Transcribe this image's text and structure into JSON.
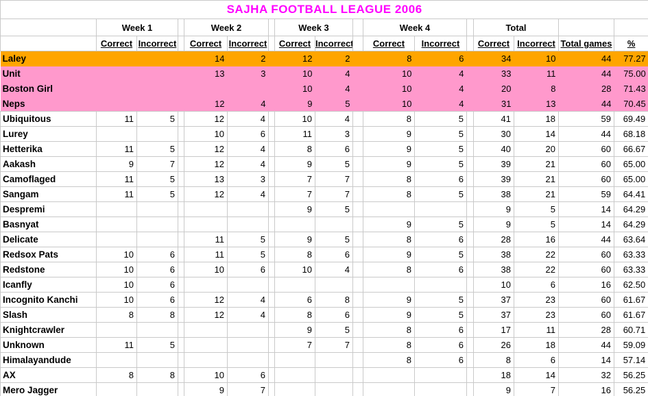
{
  "title": "SAJHA FOOTBALL LEAGUE 2006",
  "colors": {
    "title": "#FF00FF",
    "leader_row": "#FFA500",
    "highlight_row": "#FF99CC",
    "gridline": "#C9C9C9"
  },
  "table": {
    "week_headers": [
      "Week 1",
      "Week 2",
      "Week 3",
      "Week 4",
      "Total"
    ],
    "correct_label": "Correct",
    "incorrect_label": "Incorrect",
    "total_games_header": "Total games",
    "percent_header": "%",
    "rows": [
      {
        "name": "Laley",
        "w1c": "",
        "w1i": "",
        "w2c": "14",
        "w2i": "2",
        "w3c": "12",
        "w3i": "2",
        "w4c": "8",
        "w4i": "6",
        "tc": "34",
        "ti": "10",
        "games": "44",
        "pct": "77.27",
        "hl": "orange"
      },
      {
        "name": "Unit",
        "w1c": "",
        "w1i": "",
        "w2c": "13",
        "w2i": "3",
        "w3c": "10",
        "w3i": "4",
        "w4c": "10",
        "w4i": "4",
        "tc": "33",
        "ti": "11",
        "games": "44",
        "pct": "75.00",
        "hl": "pink"
      },
      {
        "name": "Boston Girl",
        "w1c": "",
        "w1i": "",
        "w2c": "",
        "w2i": "",
        "w3c": "10",
        "w3i": "4",
        "w4c": "10",
        "w4i": "4",
        "tc": "20",
        "ti": "8",
        "games": "28",
        "pct": "71.43",
        "hl": "pink"
      },
      {
        "name": "Neps",
        "w1c": "",
        "w1i": "",
        "w2c": "12",
        "w2i": "4",
        "w3c": "9",
        "w3i": "5",
        "w4c": "10",
        "w4i": "4",
        "tc": "31",
        "ti": "13",
        "games": "44",
        "pct": "70.45",
        "hl": "pink"
      },
      {
        "name": "Ubiquitous",
        "w1c": "11",
        "w1i": "5",
        "w2c": "12",
        "w2i": "4",
        "w3c": "10",
        "w3i": "4",
        "w4c": "8",
        "w4i": "5",
        "tc": "41",
        "ti": "18",
        "games": "59",
        "pct": "69.49",
        "hl": ""
      },
      {
        "name": "Lurey",
        "w1c": "",
        "w1i": "",
        "w2c": "10",
        "w2i": "6",
        "w3c": "11",
        "w3i": "3",
        "w4c": "9",
        "w4i": "5",
        "tc": "30",
        "ti": "14",
        "games": "44",
        "pct": "68.18",
        "hl": ""
      },
      {
        "name": "Hetterika",
        "w1c": "11",
        "w1i": "5",
        "w2c": "12",
        "w2i": "4",
        "w3c": "8",
        "w3i": "6",
        "w4c": "9",
        "w4i": "5",
        "tc": "40",
        "ti": "20",
        "games": "60",
        "pct": "66.67",
        "hl": ""
      },
      {
        "name": "Aakash",
        "w1c": "9",
        "w1i": "7",
        "w2c": "12",
        "w2i": "4",
        "w3c": "9",
        "w3i": "5",
        "w4c": "9",
        "w4i": "5",
        "tc": "39",
        "ti": "21",
        "games": "60",
        "pct": "65.00",
        "hl": ""
      },
      {
        "name": "Camoflaged",
        "w1c": "11",
        "w1i": "5",
        "w2c": "13",
        "w2i": "3",
        "w3c": "7",
        "w3i": "7",
        "w4c": "8",
        "w4i": "6",
        "tc": "39",
        "ti": "21",
        "games": "60",
        "pct": "65.00",
        "hl": ""
      },
      {
        "name": "Sangam",
        "w1c": "11",
        "w1i": "5",
        "w2c": "12",
        "w2i": "4",
        "w3c": "7",
        "w3i": "7",
        "w4c": "8",
        "w4i": "5",
        "tc": "38",
        "ti": "21",
        "games": "59",
        "pct": "64.41",
        "hl": ""
      },
      {
        "name": "Despremi",
        "w1c": "",
        "w1i": "",
        "w2c": "",
        "w2i": "",
        "w3c": "9",
        "w3i": "5",
        "w4c": "",
        "w4i": "",
        "tc": "9",
        "ti": "5",
        "games": "14",
        "pct": "64.29",
        "hl": ""
      },
      {
        "name": "Basnyat",
        "w1c": "",
        "w1i": "",
        "w2c": "",
        "w2i": "",
        "w3c": "",
        "w3i": "",
        "w4c": "9",
        "w4i": "5",
        "tc": "9",
        "ti": "5",
        "games": "14",
        "pct": "64.29",
        "hl": ""
      },
      {
        "name": "Delicate",
        "w1c": "",
        "w1i": "",
        "w2c": "11",
        "w2i": "5",
        "w3c": "9",
        "w3i": "5",
        "w4c": "8",
        "w4i": "6",
        "tc": "28",
        "ti": "16",
        "games": "44",
        "pct": "63.64",
        "hl": ""
      },
      {
        "name": "Redsox Pats",
        "w1c": "10",
        "w1i": "6",
        "w2c": "11",
        "w2i": "5",
        "w3c": "8",
        "w3i": "6",
        "w4c": "9",
        "w4i": "5",
        "tc": "38",
        "ti": "22",
        "games": "60",
        "pct": "63.33",
        "hl": ""
      },
      {
        "name": "Redstone",
        "w1c": "10",
        "w1i": "6",
        "w2c": "10",
        "w2i": "6",
        "w3c": "10",
        "w3i": "4",
        "w4c": "8",
        "w4i": "6",
        "tc": "38",
        "ti": "22",
        "games": "60",
        "pct": "63.33",
        "hl": ""
      },
      {
        "name": "Icanfly",
        "w1c": "10",
        "w1i": "6",
        "w2c": "",
        "w2i": "",
        "w3c": "",
        "w3i": "",
        "w4c": "",
        "w4i": "",
        "tc": "10",
        "ti": "6",
        "games": "16",
        "pct": "62.50",
        "hl": ""
      },
      {
        "name": "Incognito Kanchi",
        "w1c": "10",
        "w1i": "6",
        "w2c": "12",
        "w2i": "4",
        "w3c": "6",
        "w3i": "8",
        "w4c": "9",
        "w4i": "5",
        "tc": "37",
        "ti": "23",
        "games": "60",
        "pct": "61.67",
        "hl": ""
      },
      {
        "name": "Slash",
        "w1c": "8",
        "w1i": "8",
        "w2c": "12",
        "w2i": "4",
        "w3c": "8",
        "w3i": "6",
        "w4c": "9",
        "w4i": "5",
        "tc": "37",
        "ti": "23",
        "games": "60",
        "pct": "61.67",
        "hl": ""
      },
      {
        "name": "Knightcrawler",
        "w1c": "",
        "w1i": "",
        "w2c": "",
        "w2i": "",
        "w3c": "9",
        "w3i": "5",
        "w4c": "8",
        "w4i": "6",
        "tc": "17",
        "ti": "11",
        "games": "28",
        "pct": "60.71",
        "hl": ""
      },
      {
        "name": "Unknown",
        "w1c": "11",
        "w1i": "5",
        "w2c": "",
        "w2i": "",
        "w3c": "7",
        "w3i": "7",
        "w4c": "8",
        "w4i": "6",
        "tc": "26",
        "ti": "18",
        "games": "44",
        "pct": "59.09",
        "hl": ""
      },
      {
        "name": "Himalayandude",
        "w1c": "",
        "w1i": "",
        "w2c": "",
        "w2i": "",
        "w3c": "",
        "w3i": "",
        "w4c": "8",
        "w4i": "6",
        "tc": "8",
        "ti": "6",
        "games": "14",
        "pct": "57.14",
        "hl": ""
      },
      {
        "name": "AX",
        "w1c": "8",
        "w1i": "8",
        "w2c": "10",
        "w2i": "6",
        "w3c": "",
        "w3i": "",
        "w4c": "",
        "w4i": "",
        "tc": "18",
        "ti": "14",
        "games": "32",
        "pct": "56.25",
        "hl": ""
      },
      {
        "name": "Mero Jagger",
        "w1c": "",
        "w1i": "",
        "w2c": "9",
        "w2i": "7",
        "w3c": "",
        "w3i": "",
        "w4c": "",
        "w4i": "",
        "tc": "9",
        "ti": "7",
        "games": "16",
        "pct": "56.25",
        "hl": ""
      }
    ]
  }
}
